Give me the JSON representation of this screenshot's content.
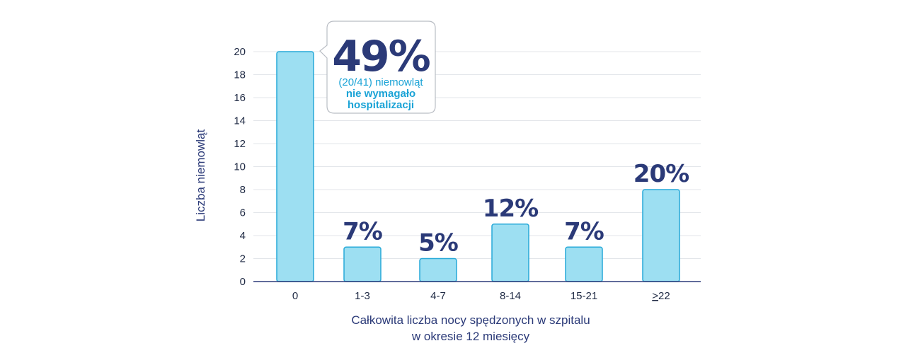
{
  "colors": {
    "bar_fill": "#9ddff2",
    "bar_stroke": "#27a9d8",
    "axis": "#2b3a78",
    "grid": "#e3e6ea",
    "label_navy": "#2b3a78",
    "callout_cyan": "#1aa3d6"
  },
  "chart_data": {
    "type": "bar",
    "categories": [
      "0",
      "1-3",
      "4-7",
      "8-14",
      "15-21",
      ">22"
    ],
    "values": [
      20,
      3,
      2,
      5,
      3,
      8
    ],
    "data_labels": [
      "",
      "7%",
      "5%",
      "12%",
      "7%",
      "20%"
    ],
    "ylabel": "Liczba niemowląt",
    "xlabel_line1": "Całkowita liczba nocy spędzonych w szpitalu",
    "xlabel_line2": "w okresie 12 miesięcy",
    "ylim": [
      0,
      20
    ],
    "yticks": [
      0,
      2,
      4,
      6,
      8,
      10,
      12,
      14,
      16,
      18,
      20
    ],
    "grid": true,
    "callout": {
      "big": "49%",
      "line1": "(20/41) niemowląt",
      "line2": "nie wymagało",
      "line3": "hospitalizacji"
    }
  }
}
